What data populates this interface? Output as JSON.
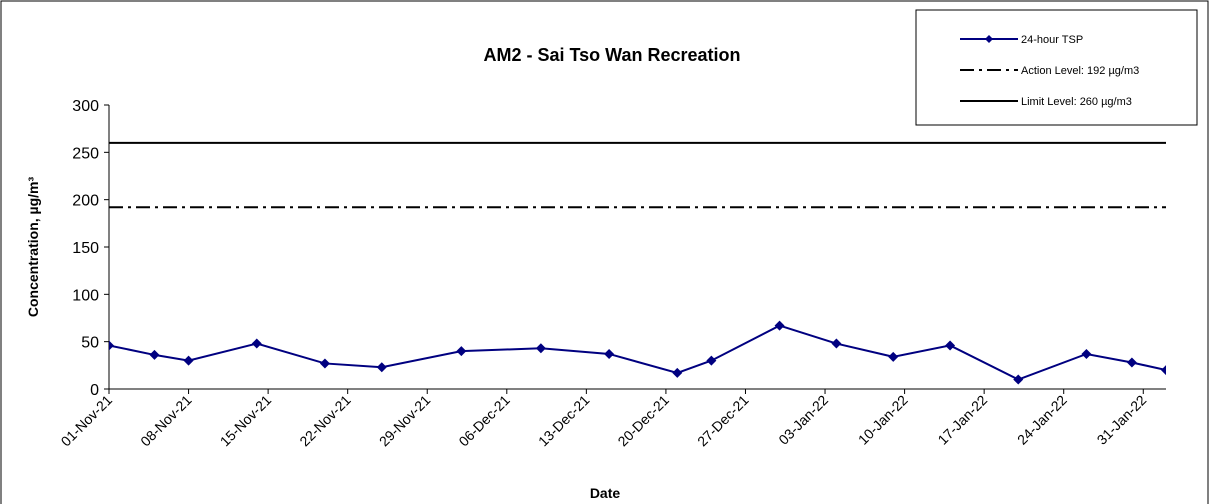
{
  "chart_data": {
    "type": "line",
    "title": "AM2 - Sai Tso Wan Recreation",
    "x_label": "Date",
    "y_label": "Concentration, µg/m³",
    "x": [
      "2021-11-01",
      "2021-11-05",
      "2021-11-08",
      "2021-11-14",
      "2021-11-20",
      "2021-11-25",
      "2021-12-02",
      "2021-12-09",
      "2021-12-15",
      "2021-12-21",
      "2021-12-24",
      "2021-12-30",
      "2022-01-04",
      "2022-01-09",
      "2022-01-14",
      "2022-01-20",
      "2022-01-26",
      "2022-01-30",
      "2022-02-02"
    ],
    "series": [
      {
        "name": "24-hour TSP",
        "color": "#000080",
        "values": [
          46,
          36,
          30,
          48,
          27,
          23,
          40,
          43,
          37,
          17,
          30,
          67,
          48,
          34,
          46,
          10,
          37,
          28,
          20
        ]
      }
    ],
    "reference_lines": [
      {
        "name": "Action Level: 192 µg/m3",
        "value": 192,
        "style": "dashdot",
        "color": "#000000"
      },
      {
        "name": "Limit Level: 260 µg/m3",
        "value": 260,
        "style": "solid",
        "color": "#000000"
      }
    ],
    "xlim": [
      "2021-11-01",
      "2022-02-02"
    ],
    "xticks": [
      {
        "value": "2021-11-01",
        "label": "01-Nov-21"
      },
      {
        "value": "2021-11-08",
        "label": "08-Nov-21"
      },
      {
        "value": "2021-11-15",
        "label": "15-Nov-21"
      },
      {
        "value": "2021-11-22",
        "label": "22-Nov-21"
      },
      {
        "value": "2021-11-29",
        "label": "29-Nov-21"
      },
      {
        "value": "2021-12-06",
        "label": "06-Dec-21"
      },
      {
        "value": "2021-12-13",
        "label": "13-Dec-21"
      },
      {
        "value": "2021-12-20",
        "label": "20-Dec-21"
      },
      {
        "value": "2021-12-27",
        "label": "27-Dec-21"
      },
      {
        "value": "2022-01-03",
        "label": "03-Jan-22"
      },
      {
        "value": "2022-01-10",
        "label": "10-Jan-22"
      },
      {
        "value": "2022-01-17",
        "label": "17-Jan-22"
      },
      {
        "value": "2022-01-24",
        "label": "24-Jan-22"
      },
      {
        "value": "2022-01-31",
        "label": "31-Jan-22"
      }
    ],
    "ylim": [
      0,
      300
    ],
    "yticks": [
      0,
      50,
      100,
      150,
      200,
      250,
      300
    ],
    "grid": false,
    "legend": "top-right"
  }
}
